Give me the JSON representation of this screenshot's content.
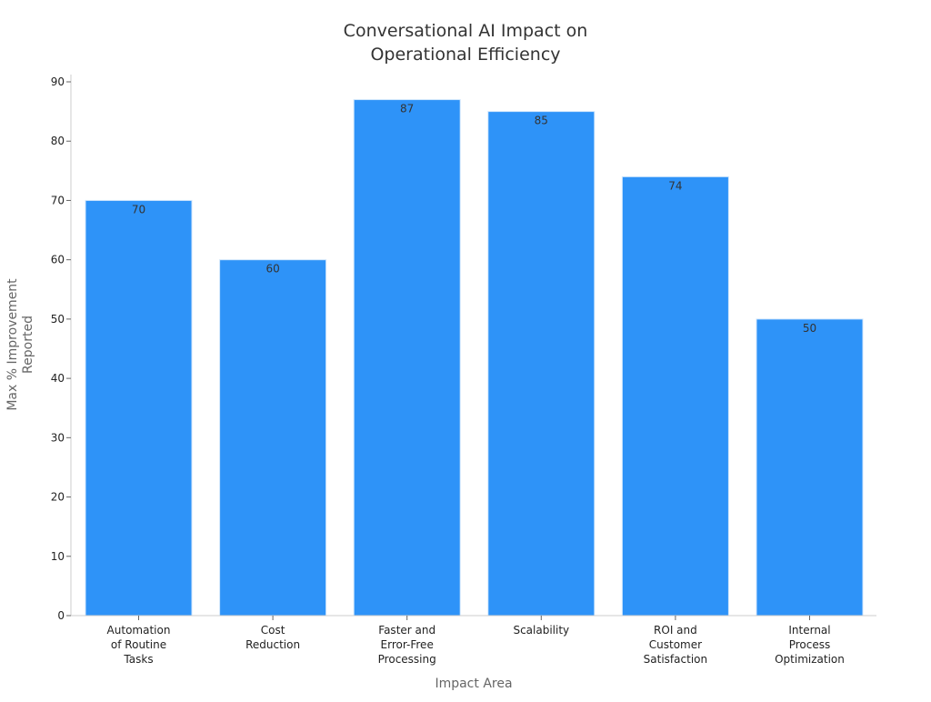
{
  "chart_data": {
    "type": "bar",
    "title": [
      "Conversational AI Impact on",
      "Operational Efficiency"
    ],
    "xlabel": "Impact Area",
    "ylabel": [
      "Max % Improvement",
      "Reported"
    ],
    "categories": [
      [
        "Automation",
        "of Routine",
        "Tasks"
      ],
      [
        "Cost",
        "Reduction"
      ],
      [
        "Faster and",
        "Error-Free",
        "Processing"
      ],
      [
        "Scalability"
      ],
      [
        "ROI and",
        "Customer",
        "Satisfaction"
      ],
      [
        "Internal",
        "Process",
        "Optimization"
      ]
    ],
    "values": [
      70,
      60,
      87,
      85,
      74,
      50
    ],
    "data_labels": [
      "70",
      "60",
      "87",
      "85",
      "74",
      "50"
    ],
    "ylim": [
      0,
      90
    ],
    "yticks": [
      0,
      10,
      20,
      30,
      40,
      50,
      60,
      70,
      80,
      90
    ],
    "bar_color": "#2e93f8",
    "grid": false,
    "legend": "none"
  }
}
